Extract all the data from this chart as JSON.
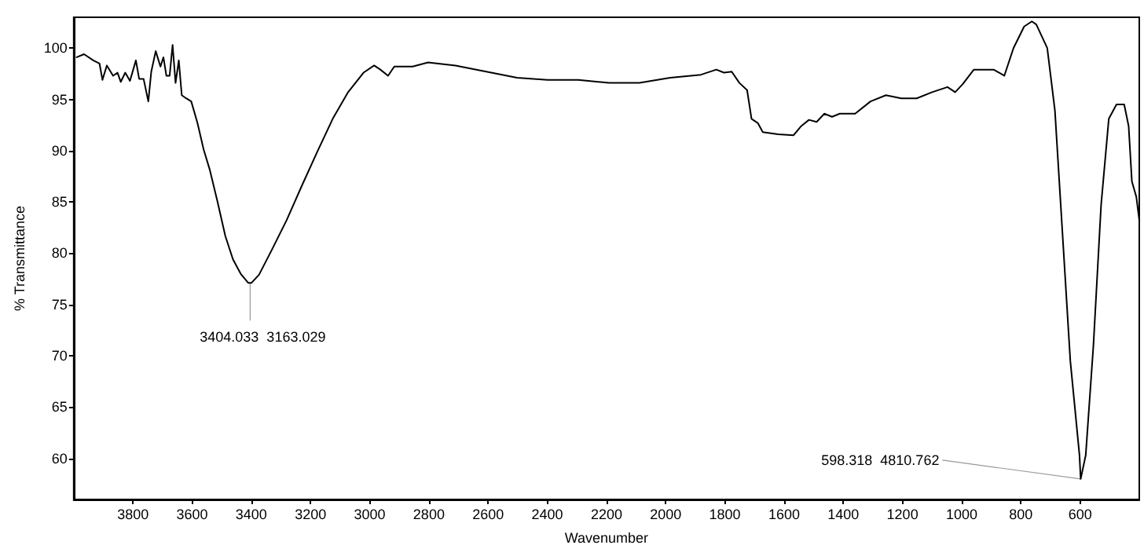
{
  "chart_data": {
    "type": "line",
    "xlabel": "Wavenumber",
    "ylabel": "% Transmittance",
    "xlim": [
      4000,
      400
    ],
    "xticks": [
      3800,
      3600,
      3400,
      3200,
      3000,
      2800,
      2600,
      2400,
      2200,
      2000,
      1800,
      1600,
      1400,
      1200,
      1000,
      800,
      600
    ],
    "ylim": [
      56,
      103
    ],
    "yticks": [
      60,
      65,
      70,
      75,
      80,
      85,
      90,
      95,
      100
    ],
    "grid": false,
    "marker": "none",
    "line_style": "solid",
    "annotations": [
      {
        "text": "3404.033  3163.029",
        "x": 3404,
        "y": 77.1
      },
      {
        "text": "598.318  4810.762",
        "x": 598,
        "y": 58.0
      }
    ],
    "series": [
      {
        "color": "#000000",
        "x": [
          3990,
          3965,
          3934,
          3913,
          3903,
          3888,
          3867,
          3852,
          3841,
          3826,
          3810,
          3790,
          3779,
          3764,
          3748,
          3738,
          3723,
          3707,
          3697,
          3687,
          3676,
          3666,
          3656,
          3645,
          3635,
          3620,
          3603,
          3582,
          3561,
          3540,
          3514,
          3488,
          3462,
          3436,
          3410,
          3400,
          3374,
          3333,
          3281,
          3229,
          3177,
          3125,
          3073,
          3021,
          2985,
          2964,
          2938,
          2917,
          2855,
          2803,
          2710,
          2606,
          2502,
          2399,
          2295,
          2191,
          2089,
          1985,
          1881,
          1829,
          1803,
          1777,
          1751,
          1725,
          1710,
          1689,
          1672,
          1620,
          1568,
          1542,
          1516,
          1490,
          1464,
          1438,
          1412,
          1360,
          1308,
          1256,
          1204,
          1152,
          1100,
          1048,
          1022,
          996,
          959,
          892,
          856,
          825,
          789,
          763,
          748,
          711,
          685,
          659,
          633,
          602,
          598,
          581,
          555,
          529,
          503,
          477,
          451,
          436,
          425,
          410,
          400
        ],
        "values": [
          99.1,
          99.4,
          98.8,
          98.5,
          96.9,
          98.3,
          97.3,
          97.6,
          96.7,
          97.6,
          96.8,
          98.8,
          97.0,
          97.0,
          94.8,
          97.7,
          99.7,
          98.2,
          99.1,
          97.3,
          97.3,
          100.3,
          96.6,
          98.8,
          95.4,
          95.1,
          94.8,
          92.7,
          90.1,
          88.1,
          85.0,
          81.7,
          79.4,
          78.0,
          77.1,
          77.1,
          77.9,
          80.2,
          83.2,
          86.6,
          89.9,
          93.1,
          95.7,
          97.6,
          98.3,
          97.9,
          97.3,
          98.2,
          98.2,
          98.6,
          98.3,
          97.7,
          97.1,
          96.9,
          96.9,
          96.6,
          96.6,
          97.1,
          97.4,
          97.9,
          97.6,
          97.7,
          96.6,
          95.9,
          93.1,
          92.7,
          91.8,
          91.6,
          91.5,
          92.4,
          93.0,
          92.8,
          93.6,
          93.3,
          93.6,
          93.6,
          94.8,
          95.4,
          95.1,
          95.1,
          95.7,
          96.2,
          95.7,
          96.5,
          97.9,
          97.9,
          97.3,
          100.0,
          102.1,
          102.6,
          102.3,
          100.0,
          93.9,
          81.7,
          69.5,
          60.3,
          58.0,
          60.3,
          71.0,
          84.7,
          93.1,
          94.5,
          94.5,
          92.4,
          87.0,
          85.5,
          83.2
        ]
      }
    ]
  }
}
